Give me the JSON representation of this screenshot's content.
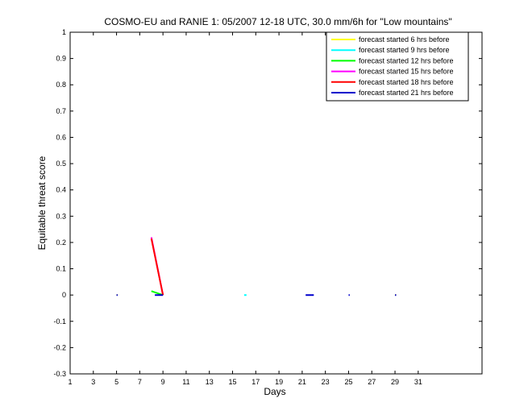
{
  "chart_data": {
    "type": "line",
    "title": "COSMO-EU and RANIE 1: 05/2007 12-18 UTC, 30.0 mm/6h for \"Low mountains\"",
    "xlabel": "Days",
    "ylabel": "Equitable threat score",
    "xlim": [
      1,
      36.5
    ],
    "ylim": [
      -0.3,
      1
    ],
    "xticks": [
      1,
      3,
      5,
      7,
      9,
      11,
      13,
      15,
      17,
      19,
      21,
      23,
      25,
      27,
      29,
      31
    ],
    "yticks": [
      -0.3,
      -0.2,
      -0.1,
      0,
      0.1,
      0.2,
      0.3,
      0.4,
      0.5,
      0.6,
      0.7,
      0.8,
      0.9,
      1
    ],
    "grid": false,
    "legend_position": "top-right",
    "series": [
      {
        "name": "forecast started 6 hrs before",
        "color": "#ffff00",
        "segments": [
          [
            [
              5,
              0.001
            ],
            [
              5.1,
              0
            ]
          ],
          [
            [
              29,
              0.001
            ],
            [
              29.1,
              0
            ]
          ]
        ]
      },
      {
        "name": "forecast started 9 hrs before",
        "color": "#00ffff",
        "segments": [
          [
            [
              16,
              0
            ],
            [
              16.2,
              0
            ]
          ]
        ]
      },
      {
        "name": "forecast started 12 hrs before",
        "color": "#00ff00",
        "segments": [
          [
            [
              8,
              0.015
            ],
            [
              9,
              0
            ]
          ]
        ]
      },
      {
        "name": "forecast started 15 hrs before",
        "color": "#ff00ff",
        "segments": [
          [
            [
              8,
              0.22
            ],
            [
              9,
              0
            ]
          ]
        ]
      },
      {
        "name": "forecast started 18 hrs before",
        "color": "#ff0000",
        "segments": [
          [
            [
              8,
              0.215
            ],
            [
              9,
              0
            ]
          ]
        ]
      },
      {
        "name": "forecast started 21 hrs before",
        "color": "#0000cc",
        "segments": [
          [
            [
              5,
              0
            ],
            [
              5.1,
              0
            ]
          ],
          [
            [
              8.3,
              0
            ],
            [
              9,
              0
            ]
          ],
          [
            [
              21.3,
              0
            ],
            [
              22,
              0
            ]
          ],
          [
            [
              25,
              0
            ],
            [
              25.1,
              0
            ]
          ],
          [
            [
              29,
              0
            ],
            [
              29.1,
              0
            ]
          ]
        ]
      }
    ]
  }
}
